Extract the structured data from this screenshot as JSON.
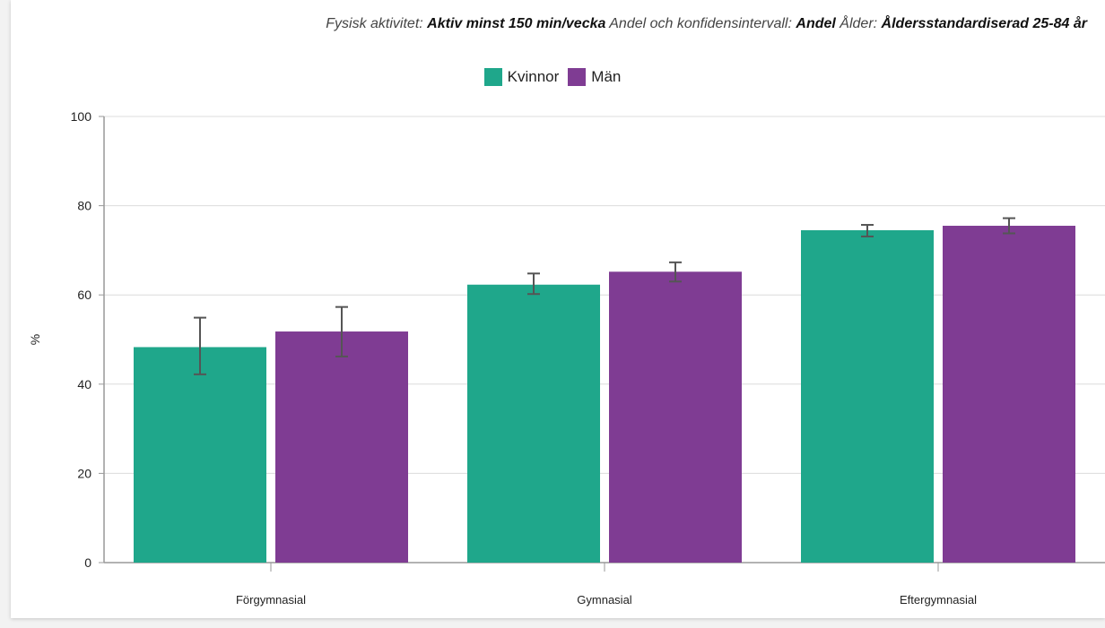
{
  "filters": [
    {
      "label": "Fysisk aktivitet:",
      "value": "Aktiv minst 150 min/vecka"
    },
    {
      "label": "Andel och konfidensintervall:",
      "value": "Andel"
    },
    {
      "label": "Ålder:",
      "value": "Åldersstandardiserad 25-84 år"
    }
  ],
  "chart_data": {
    "type": "bar",
    "categories": [
      "Förgymnasial",
      "Gymnasial",
      "Eftergymnasial"
    ],
    "series": [
      {
        "name": "Kvinnor",
        "color": "#1fa78b",
        "values": [
          48.3,
          62.3,
          74.5
        ],
        "ci_low": [
          42.2,
          60.2,
          73.1
        ],
        "ci_high": [
          54.9,
          64.8,
          75.7
        ]
      },
      {
        "name": "Män",
        "color": "#7f3c93",
        "values": [
          51.8,
          65.2,
          75.5
        ],
        "ci_low": [
          46.2,
          63.0,
          73.8
        ],
        "ci_high": [
          57.3,
          67.3,
          77.2
        ]
      }
    ],
    "ylabel": "%",
    "ylim": [
      0,
      100
    ],
    "yticks": [
      0,
      20,
      40,
      60,
      80,
      100
    ],
    "grid": true,
    "legend_position": "top-center"
  }
}
